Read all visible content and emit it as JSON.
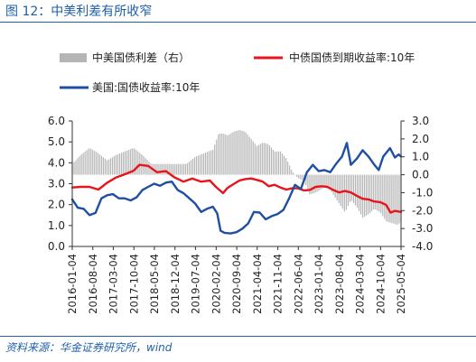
{
  "header": {
    "title": "图 12：中美利差有所收窄"
  },
  "footer": {
    "source": "资料来源：华金证券研究所，wind"
  },
  "chart_data": {
    "type": "line",
    "legend": [
      {
        "name": "中美国债利差（右）",
        "kind": "bar",
        "color": "#b5b5b5"
      },
      {
        "name": "中债国债到期收益率:10年",
        "kind": "line",
        "color": "#e8141c"
      },
      {
        "name": "美国:国债收益率:10年",
        "kind": "line",
        "color": "#1f4fa5"
      }
    ],
    "y_left": {
      "min": 0.0,
      "max": 6.0,
      "ticks": [
        "6.0",
        "5.0",
        "4.0",
        "3.0",
        "2.0",
        "1.0",
        "0.0"
      ]
    },
    "y_right": {
      "min": -4.0,
      "max": 3.0,
      "ticks": [
        "3.0",
        "2.0",
        "1.0",
        "0.0",
        "-1.0",
        "-2.0",
        "-3.0",
        "-4.0"
      ]
    },
    "x_range": [
      "2016-01-04",
      "2025-05-04"
    ],
    "x_ticks": [
      "2016-01-04",
      "2016-08-04",
      "2017-03-04",
      "2017-10-04",
      "2018-05-04",
      "2018-12-04",
      "2019-07-04",
      "2020-02-04",
      "2020-09-04",
      "2021-04-04",
      "2021-11-04",
      "2022-06-04",
      "2023-01-04",
      "2023-08-04",
      "2024-03-04",
      "2024-10-04",
      "2025-05-04"
    ],
    "series": [
      {
        "name": "中美国债利差（右）",
        "axis": "right",
        "kind": "bar",
        "color": "#b5b5b5",
        "x": [
          "2016-01-04",
          "2016-04-01",
          "2016-07-01",
          "2016-10-01",
          "2017-01-01",
          "2017-04-01",
          "2017-07-01",
          "2017-10-01",
          "2018-01-01",
          "2018-04-01",
          "2018-07-01",
          "2018-10-01",
          "2019-01-01",
          "2019-04-01",
          "2019-07-01",
          "2019-10-01",
          "2020-01-01",
          "2020-03-01",
          "2020-04-15",
          "2020-06-01",
          "2020-08-01",
          "2020-10-01",
          "2020-12-01",
          "2021-02-01",
          "2021-04-01",
          "2021-06-01",
          "2021-08-01",
          "2021-10-01",
          "2021-12-01",
          "2022-02-01",
          "2022-04-01",
          "2022-06-01",
          "2022-08-01",
          "2022-10-01",
          "2022-12-01",
          "2023-02-01",
          "2023-04-01",
          "2023-06-01",
          "2023-08-01",
          "2023-10-01",
          "2023-12-01",
          "2024-02-01",
          "2024-04-01",
          "2024-06-01",
          "2024-08-01",
          "2024-10-01",
          "2024-12-01",
          "2025-02-01",
          "2025-04-01",
          "2025-05-04"
        ],
        "values": [
          0.6,
          1.1,
          1.5,
          1.2,
          0.8,
          1.1,
          1.3,
          1.5,
          1.1,
          0.6,
          0.6,
          0.6,
          0.6,
          0.6,
          1.0,
          1.2,
          1.4,
          2.3,
          2.3,
          2.2,
          2.4,
          2.5,
          2.4,
          2.0,
          1.6,
          1.8,
          1.7,
          1.3,
          1.3,
          0.9,
          0.2,
          -0.2,
          -0.3,
          -1.1,
          -1.0,
          -0.8,
          -0.6,
          -1.1,
          -1.6,
          -2.1,
          -1.4,
          -1.8,
          -2.4,
          -2.2,
          -1.9,
          -2.1,
          -2.6,
          -2.7,
          -2.8,
          -2.6
        ]
      },
      {
        "name": "中债国债到期收益率:10年",
        "axis": "left",
        "kind": "line",
        "color": "#e8141c",
        "x": [
          "2016-01-04",
          "2016-04-01",
          "2016-07-01",
          "2016-10-01",
          "2017-01-01",
          "2017-04-01",
          "2017-07-01",
          "2017-10-01",
          "2017-12-01",
          "2018-03-01",
          "2018-06-01",
          "2018-09-01",
          "2018-12-01",
          "2019-03-01",
          "2019-06-01",
          "2019-09-01",
          "2019-12-01",
          "2020-02-01",
          "2020-04-15",
          "2020-06-01",
          "2020-08-01",
          "2020-10-01",
          "2020-12-01",
          "2021-02-01",
          "2021-04-01",
          "2021-06-01",
          "2021-08-01",
          "2021-10-01",
          "2021-12-01",
          "2022-02-01",
          "2022-04-01",
          "2022-06-01",
          "2022-08-01",
          "2022-10-01",
          "2022-12-01",
          "2023-02-01",
          "2023-04-01",
          "2023-06-01",
          "2023-08-01",
          "2023-10-01",
          "2023-12-01",
          "2024-02-01",
          "2024-04-01",
          "2024-06-01",
          "2024-08-01",
          "2024-10-01",
          "2024-12-01",
          "2025-01-15",
          "2025-03-01",
          "2025-05-04"
        ],
        "values": [
          2.82,
          2.85,
          2.85,
          2.72,
          3.05,
          3.3,
          3.45,
          3.62,
          3.9,
          3.85,
          3.55,
          3.6,
          3.3,
          3.1,
          3.25,
          3.1,
          3.15,
          2.85,
          2.55,
          2.8,
          2.98,
          3.15,
          3.22,
          3.25,
          3.18,
          3.1,
          2.88,
          2.95,
          2.82,
          2.72,
          2.78,
          2.78,
          2.68,
          2.7,
          2.85,
          2.88,
          2.85,
          2.7,
          2.58,
          2.65,
          2.58,
          2.42,
          2.28,
          2.25,
          2.15,
          2.12,
          1.98,
          1.62,
          1.7,
          1.65
        ]
      },
      {
        "name": "美国:国债收益率:10年",
        "axis": "left",
        "kind": "line",
        "color": "#1f4fa5",
        "x": [
          "2016-01-04",
          "2016-03-01",
          "2016-05-01",
          "2016-07-01",
          "2016-09-01",
          "2016-11-01",
          "2017-01-01",
          "2017-03-01",
          "2017-05-01",
          "2017-07-01",
          "2017-09-01",
          "2017-11-01",
          "2018-01-01",
          "2018-03-01",
          "2018-05-01",
          "2018-07-01",
          "2018-09-01",
          "2018-11-01",
          "2019-01-01",
          "2019-03-01",
          "2019-05-01",
          "2019-07-01",
          "2019-09-01",
          "2019-11-01",
          "2020-01-01",
          "2020-02-15",
          "2020-03-20",
          "2020-05-01",
          "2020-07-01",
          "2020-09-01",
          "2020-11-01",
          "2021-01-01",
          "2021-03-01",
          "2021-05-01",
          "2021-07-01",
          "2021-09-01",
          "2021-11-01",
          "2022-01-01",
          "2022-03-01",
          "2022-05-01",
          "2022-07-01",
          "2022-09-01",
          "2022-11-01",
          "2023-01-01",
          "2023-03-01",
          "2023-05-01",
          "2023-07-01",
          "2023-09-01",
          "2023-10-20",
          "2023-12-01",
          "2024-02-01",
          "2024-04-01",
          "2024-06-01",
          "2024-08-01",
          "2024-09-15",
          "2024-11-01",
          "2025-01-10",
          "2025-03-01",
          "2025-04-10",
          "2025-05-04"
        ],
        "values": [
          2.25,
          1.85,
          1.8,
          1.5,
          1.6,
          2.3,
          2.45,
          2.5,
          2.3,
          2.3,
          2.2,
          2.35,
          2.7,
          2.85,
          3.0,
          2.9,
          3.05,
          3.1,
          2.7,
          2.55,
          2.3,
          2.05,
          1.65,
          1.8,
          1.9,
          1.58,
          0.75,
          0.65,
          0.62,
          0.68,
          0.85,
          1.1,
          1.65,
          1.62,
          1.3,
          1.45,
          1.55,
          1.75,
          2.3,
          2.95,
          2.75,
          3.55,
          3.9,
          3.6,
          3.65,
          3.55,
          3.95,
          4.3,
          4.95,
          3.9,
          4.2,
          4.6,
          4.3,
          3.9,
          3.65,
          4.3,
          4.7,
          4.25,
          4.4,
          4.3
        ]
      }
    ]
  }
}
